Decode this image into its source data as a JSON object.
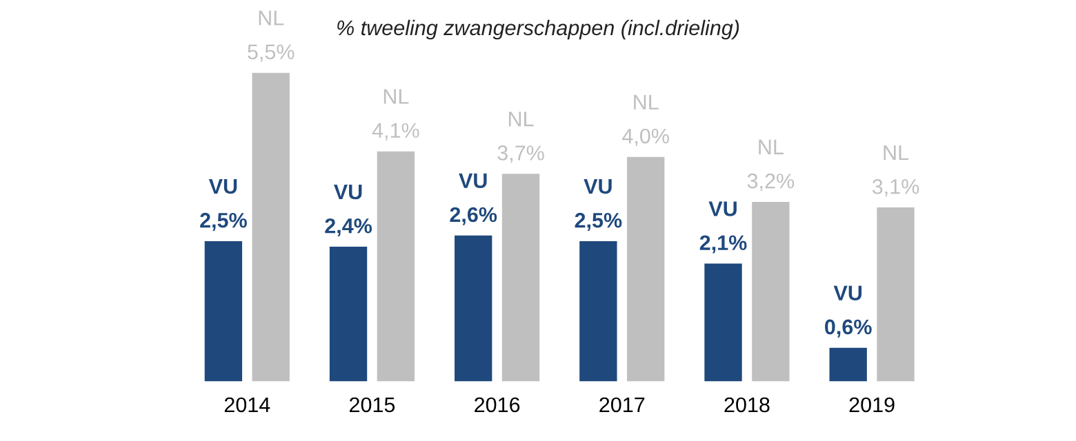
{
  "chart_data": {
    "type": "bar",
    "title": "% tweeling zwangerschappen (incl.drieling)",
    "categories": [
      "2014",
      "2015",
      "2016",
      "2017",
      "2018",
      "2019"
    ],
    "series": [
      {
        "name": "VU",
        "color": "#1f497d",
        "values": [
          2.5,
          2.4,
          2.6,
          2.5,
          2.1,
          0.6
        ],
        "value_labels": [
          "2,5%",
          "2,4%",
          "2,6%",
          "2,5%",
          "2,1%",
          "0,6%"
        ]
      },
      {
        "name": "NL",
        "color": "#bfbfbf",
        "values": [
          5.5,
          4.1,
          3.7,
          4.0,
          3.2,
          3.1
        ],
        "value_labels": [
          "5,5%",
          "4,1%",
          "3,7%",
          "4,0%",
          "3,2%",
          "3,1%"
        ]
      }
    ],
    "grid": false,
    "legend": false
  }
}
